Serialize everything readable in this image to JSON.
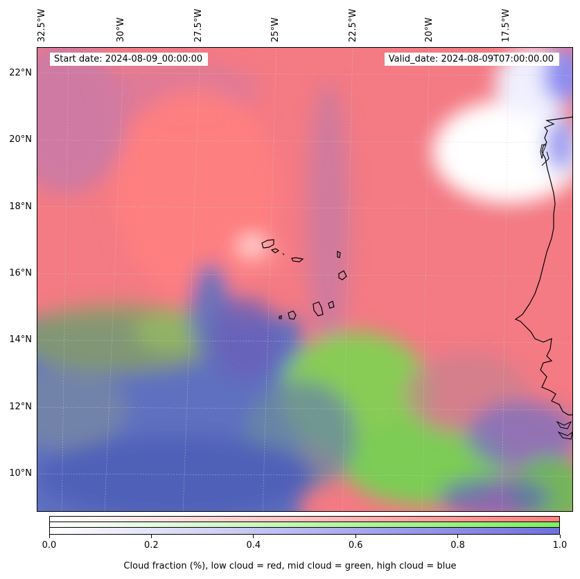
{
  "map": {
    "longitude_labels": [
      "32.5°W",
      "30°W",
      "27.5°W",
      "25°W",
      "22.5°W",
      "20°W",
      "17.5°W"
    ],
    "latitude_labels": [
      "22°N",
      "20°N",
      "18°N",
      "16°N",
      "14°N",
      "12°N",
      "10°N"
    ],
    "start_date_text": "Start date: 2024-08-09_00:00:00",
    "valid_date_text": "Valid_date: 2024-08-09T07:00:00.00",
    "colors": {
      "low_cloud": "#ff7f7f",
      "mid_cloud": "#7fdf5f",
      "high_cloud": "#4f5fcf",
      "clear": "#ffffff",
      "coastline": "#000000"
    }
  },
  "colorbar": {
    "tick_labels": [
      "0.0",
      "0.2",
      "0.4",
      "0.6",
      "0.8",
      "1.0"
    ],
    "title": "Cloud fraction (%), low cloud = red, mid cloud = green, high cloud = blue"
  }
}
